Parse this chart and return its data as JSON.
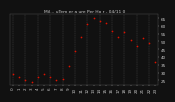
{
  "title": "Mil... uTem er a ure Per Ho r - 04/11 0",
  "background_color": "#111111",
  "plot_bg_color": "#111111",
  "grid_color": "#666666",
  "dot_color": "#dd1100",
  "tick_color": "#cccccc",
  "title_color": "#cccccc",
  "hours": [
    0,
    1,
    2,
    3,
    4,
    5,
    6,
    7,
    8,
    9,
    10,
    11,
    12,
    13,
    14,
    15,
    16,
    17,
    18,
    19,
    20,
    21,
    22,
    23
  ],
  "temperatures": [
    29,
    27,
    25,
    24,
    27,
    29,
    27,
    25,
    26,
    34,
    44,
    53,
    61,
    65,
    63,
    62,
    57,
    53,
    56,
    51,
    47,
    52,
    49,
    37
  ],
  "ylim_min": 22,
  "ylim_max": 68,
  "ytick_values": [
    25,
    30,
    35,
    40,
    45,
    50,
    55,
    60,
    65
  ],
  "ytick_labels": [
    "25",
    "30",
    "35",
    "40",
    "45",
    "50",
    "55",
    "60",
    "65"
  ],
  "xtick_labels": [
    "0",
    "1",
    "2",
    "3",
    "4",
    "5",
    "6",
    "7",
    "8",
    "9",
    "10",
    "11",
    "12",
    "13",
    "14",
    "15",
    "16",
    "17",
    "18",
    "19",
    "20",
    "21",
    "22",
    "23"
  ],
  "vgrid_positions": [
    0,
    2,
    4,
    6,
    8,
    10,
    12,
    14,
    16,
    18,
    20,
    22
  ],
  "marker_size": 1.5,
  "tick_fontsize": 3.0,
  "title_fontsize": 3.2
}
